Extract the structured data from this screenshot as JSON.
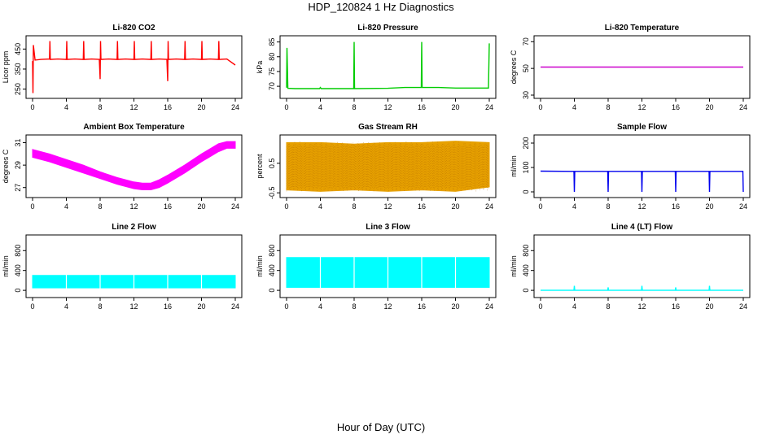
{
  "page": {
    "title": "HDP_120824  1 Hz Diagnostics",
    "xlabel": "Hour of Day (UTC)"
  },
  "chart_data": [
    {
      "type": "line",
      "title": "Li-820 CO2",
      "ylabel": "Licor ppm",
      "color": "#ff0000",
      "xlim": [
        0,
        24
      ],
      "ylim": [
        220,
        500
      ],
      "xticks": [
        "0",
        "4",
        "8",
        "12",
        "16",
        "20",
        "24"
      ],
      "yticks": [
        250,
        350,
        450
      ],
      "series": [
        {
          "x": [
            0,
            0.05,
            0.1,
            0.3,
            1,
            2,
            2.05,
            2.1,
            3,
            4,
            4.05,
            4.1,
            5,
            6,
            6.05,
            6.1,
            7,
            7.9,
            8,
            8.05,
            8.1,
            9,
            10,
            10.05,
            10.1,
            11,
            12,
            12.05,
            12.1,
            13,
            14,
            14.05,
            14.1,
            15,
            15.9,
            16,
            16.05,
            16.1,
            17,
            18,
            18.05,
            18.1,
            19,
            20,
            20.05,
            20.1,
            21,
            22,
            22.05,
            22.1,
            23,
            24
          ],
          "y": [
            390,
            230,
            470,
            395,
            398,
            400,
            490,
            398,
            400,
            398,
            490,
            398,
            400,
            398,
            490,
            398,
            400,
            398,
            300,
            490,
            398,
            400,
            398,
            490,
            398,
            400,
            398,
            490,
            398,
            400,
            398,
            490,
            398,
            400,
            398,
            290,
            490,
            398,
            400,
            398,
            490,
            398,
            400,
            398,
            490,
            398,
            400,
            398,
            490,
            398,
            400,
            370
          ]
        }
      ]
    },
    {
      "type": "line",
      "title": "Li-820 Pressure",
      "ylabel": "kPa",
      "color": "#00cc00",
      "xlim": [
        0,
        24
      ],
      "ylim": [
        67,
        86
      ],
      "xticks": [
        "0",
        "4",
        "8",
        "12",
        "16",
        "20",
        "24"
      ],
      "yticks": [
        70,
        75,
        80,
        85
      ],
      "series": [
        {
          "x": [
            0,
            0.05,
            0.15,
            1,
            3.9,
            4,
            4.1,
            6,
            7.95,
            8,
            8.05,
            12,
            14,
            15.95,
            16,
            16.05,
            18,
            20,
            23.9,
            24
          ],
          "y": [
            69.5,
            83,
            69.3,
            69.2,
            69.2,
            69.6,
            69.2,
            69.2,
            69.2,
            85,
            69.2,
            69.3,
            69.6,
            69.6,
            85,
            69.6,
            69.6,
            69.4,
            69.4,
            84.5
          ]
        }
      ]
    },
    {
      "type": "line",
      "title": "Li-820 Temperature",
      "ylabel": "degrees C",
      "color": "#cc00cc",
      "xlim": [
        0,
        24
      ],
      "ylim": [
        30,
        72
      ],
      "xticks": [
        "0",
        "4",
        "8",
        "12",
        "16",
        "20",
        "24"
      ],
      "yticks": [
        30,
        50,
        70
      ],
      "series": [
        {
          "x": [
            0,
            24
          ],
          "y": [
            51,
            51
          ]
        }
      ]
    },
    {
      "type": "area",
      "title": "Ambient Box Temperature",
      "ylabel": "degrees C",
      "color": "#ff00ff",
      "xlim": [
        0,
        24
      ],
      "ylim": [
        26.4,
        31.4
      ],
      "xticks": [
        "0",
        "4",
        "8",
        "12",
        "16",
        "20",
        "24"
      ],
      "yticks": [
        27,
        29,
        31
      ],
      "series": [
        {
          "x": [
            0,
            2,
            4,
            6,
            8,
            10,
            12,
            13,
            14,
            15,
            16,
            18,
            20,
            22,
            23,
            24
          ],
          "low": [
            29.7,
            29.3,
            28.8,
            28.3,
            27.8,
            27.3,
            26.9,
            26.8,
            26.8,
            27.0,
            27.4,
            28.3,
            29.3,
            30.2,
            30.5,
            30.5
          ],
          "high": [
            30.4,
            30.0,
            29.5,
            29.0,
            28.4,
            27.9,
            27.5,
            27.4,
            27.4,
            27.7,
            28.1,
            29.0,
            30.0,
            30.9,
            31.1,
            31.1
          ]
        }
      ]
    },
    {
      "type": "area",
      "title": "Gas Stream RH",
      "ylabel": "percent",
      "color": "#e6a000",
      "xlim": [
        0,
        24
      ],
      "ylim": [
        -0.55,
        1.35
      ],
      "xticks": [
        "0",
        "4",
        "8",
        "12",
        "16",
        "20",
        "24"
      ],
      "yticks": [
        -0.5,
        0.5
      ],
      "series": [
        {
          "x": [
            0,
            4,
            8,
            12,
            16,
            20,
            24
          ],
          "low": [
            -0.4,
            -0.45,
            -0.4,
            -0.45,
            -0.4,
            -0.45,
            -0.3
          ],
          "high": [
            1.2,
            1.2,
            1.15,
            1.2,
            1.2,
            1.25,
            1.2
          ]
        }
      ]
    },
    {
      "type": "line",
      "title": "Sample Flow",
      "ylabel": "ml/min",
      "color": "#0000ee",
      "xlim": [
        0,
        24
      ],
      "ylim": [
        -10,
        220
      ],
      "xticks": [
        "0",
        "4",
        "8",
        "12",
        "16",
        "20",
        "24"
      ],
      "yticks": [
        0,
        100,
        200
      ],
      "series": [
        {
          "x": [
            0,
            3.9,
            3.95,
            4,
            4.05,
            4.1,
            7.9,
            7.95,
            8,
            8.05,
            8.1,
            11.9,
            11.95,
            12,
            12.05,
            12.1,
            15.9,
            15.95,
            16,
            16.05,
            16.1,
            19.9,
            19.95,
            20,
            20.05,
            20.1,
            23.9,
            23.95,
            24
          ],
          "y": [
            85,
            84,
            84,
            0,
            84,
            84,
            84,
            84,
            0,
            84,
            84,
            84,
            84,
            0,
            84,
            84,
            84,
            84,
            0,
            84,
            84,
            84,
            84,
            0,
            84,
            84,
            84,
            84,
            0
          ]
        }
      ]
    },
    {
      "type": "area",
      "title": "Line 2 Flow",
      "ylabel": "ml/min",
      "color": "#00ffff",
      "xlim": [
        0,
        24
      ],
      "ylim": [
        -80,
        1050
      ],
      "xticks": [
        "0",
        "4",
        "8",
        "12",
        "16",
        "20",
        "24"
      ],
      "yticks": [
        0,
        400,
        800
      ],
      "series": [
        {
          "x": [
            0,
            24
          ],
          "low": [
            50,
            50
          ],
          "high": [
            300,
            300
          ]
        }
      ],
      "gaps": [
        4,
        8,
        12,
        16,
        20
      ]
    },
    {
      "type": "area",
      "title": "Line 3 Flow",
      "ylabel": "ml/min",
      "color": "#00ffff",
      "xlim": [
        0,
        24
      ],
      "ylim": [
        -80,
        1050
      ],
      "xticks": [
        "0",
        "4",
        "8",
        "12",
        "16",
        "20",
        "24"
      ],
      "yticks": [
        0,
        400,
        800
      ],
      "series": [
        {
          "x": [
            0,
            24
          ],
          "low": [
            60,
            60
          ],
          "high": [
            660,
            660
          ]
        }
      ],
      "gaps": [
        4,
        8,
        12,
        16,
        20
      ]
    },
    {
      "type": "line",
      "title": "Line 4 (LT) Flow",
      "ylabel": "ml/min",
      "color": "#00ffff",
      "xlim": [
        0,
        24
      ],
      "ylim": [
        -80,
        1050
      ],
      "xticks": [
        "0",
        "4",
        "8",
        "12",
        "16",
        "20",
        "24"
      ],
      "yticks": [
        0,
        400,
        800
      ],
      "series": [
        {
          "x": [
            0,
            3.95,
            4,
            4.05,
            7.95,
            8,
            8.05,
            11.95,
            12,
            12.05,
            15.95,
            16,
            16.05,
            19.95,
            20,
            20.05,
            24
          ],
          "y": [
            0,
            0,
            90,
            0,
            0,
            60,
            0,
            0,
            90,
            0,
            0,
            60,
            0,
            0,
            90,
            0,
            0
          ]
        }
      ]
    }
  ]
}
